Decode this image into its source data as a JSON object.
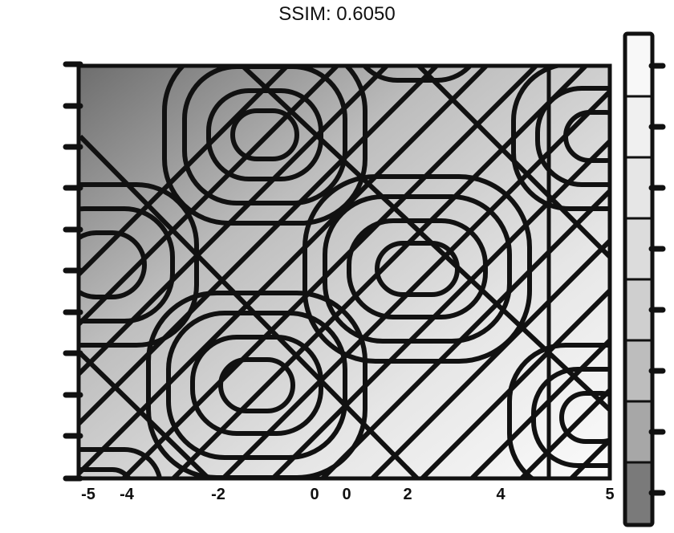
{
  "chart_data": {
    "type": "heatmap",
    "title": "SSIM: 0.6050",
    "xlabel": "",
    "ylabel": "",
    "colormap": [
      "#6e6e6e",
      "#ffffff"
    ],
    "colorbar_levels": 8,
    "contour_style": {
      "color": "#111111"
    },
    "x_tick_glyphs": [
      "-5",
      "-4",
      "-2",
      "0",
      "0",
      "2",
      "4",
      "5"
    ],
    "grid": false
  }
}
